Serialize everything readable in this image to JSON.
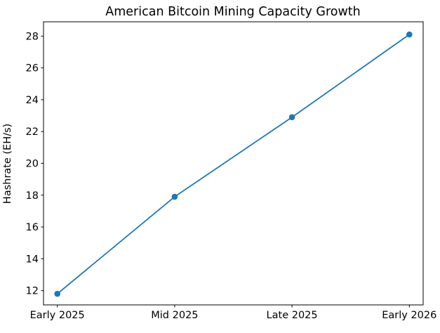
{
  "figure": {
    "background_color": "#ffffff",
    "spine_color": "#000000",
    "text_color": "#000000"
  },
  "chart_data": {
    "type": "line",
    "title": "American Bitcoin Mining Capacity Growth",
    "xlabel": "",
    "ylabel": "Hashrate (EH/s)",
    "categories": [
      "Early 2025",
      "Mid 2025",
      "Late 2025",
      "Early 2026"
    ],
    "series": [
      {
        "name": "Hashrate",
        "values": [
          11.8,
          17.9,
          22.9,
          28.1
        ],
        "color": "#1f77b4",
        "marker": "circle"
      }
    ],
    "yticks": [
      12,
      14,
      16,
      18,
      20,
      22,
      24,
      26,
      28
    ],
    "ylim": [
      11.1,
      28.9
    ],
    "grid": false,
    "legend_position": "none"
  }
}
